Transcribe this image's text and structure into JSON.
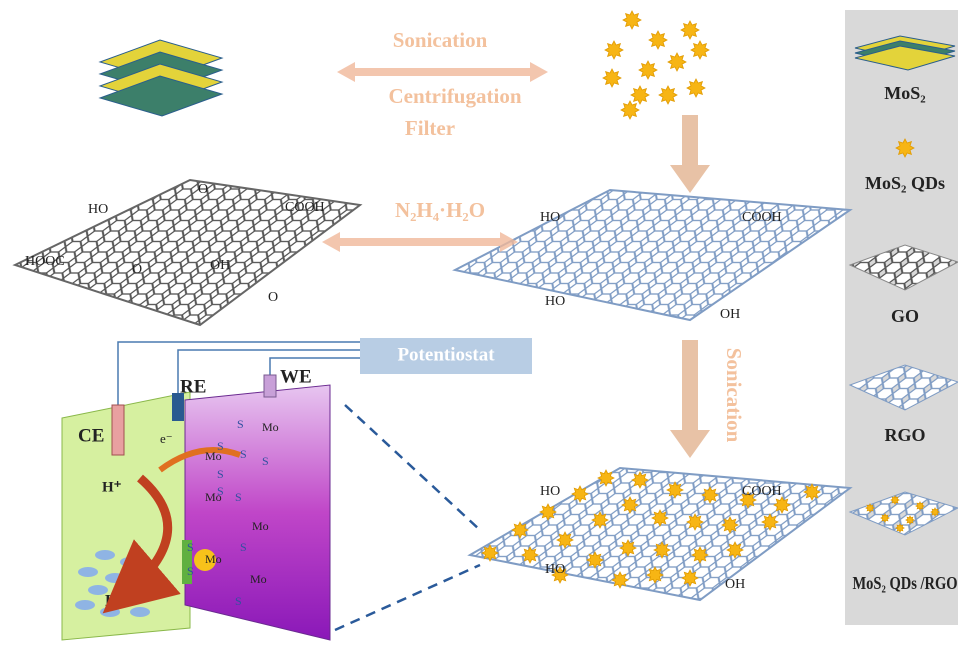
{
  "steps": {
    "sonication": "Sonication",
    "centrifugation": "Centrifugation",
    "filter": "Filter",
    "reduction": "N₂H₄·H₂O",
    "sonication2": "Sonication"
  },
  "go_groups": [
    "HO",
    "O",
    "COOH",
    "HOOC",
    "O",
    "OH",
    "O"
  ],
  "rgo_groups": [
    "HO",
    "COOH",
    "HO",
    "OH"
  ],
  "composite_groups": [
    "HO",
    "COOH",
    "HO",
    "OH"
  ],
  "cell": {
    "potentiostat": "Potentiostat",
    "re": "RE",
    "we": "WE",
    "ce": "CE",
    "electron": "e⁻",
    "proton": "H⁺",
    "hydrogen": "H₂",
    "atoms": [
      "S",
      "Mo",
      "S",
      "Mo",
      "S",
      "S",
      "S",
      "S",
      "Mo",
      "S",
      "Mo",
      "S",
      "Mo",
      "S",
      "S",
      "Mo",
      "S"
    ]
  },
  "legend": [
    "MoS₂",
    "MoS₂ QDs",
    "GO",
    "RGO",
    "MoS₂ QDs /RGO"
  ]
}
